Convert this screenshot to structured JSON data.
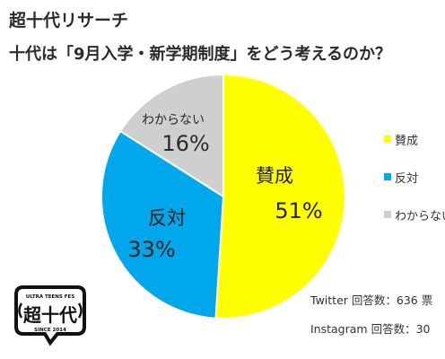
{
  "header": {
    "brand": "超十代リサーチ",
    "question": "十代は「9月入学・新学期制度」をどう考えるのか？"
  },
  "chart_data": {
    "type": "pie",
    "slices": [
      {
        "label": "賛成",
        "value": 51,
        "percent_label": "51%",
        "color": "#ffff00",
        "text_color": "#222222"
      },
      {
        "label": "反対",
        "value": 33,
        "percent_label": "33%",
        "color": "#00a7ea",
        "text_color": "#222222"
      },
      {
        "label": "わからない",
        "value": 16,
        "percent_label": "16%",
        "color": "#cfcfcf",
        "text_color": "#2b2b2b"
      }
    ],
    "legend_labels": [
      "賛成",
      "反対",
      "わからない"
    ],
    "legend_position": "right"
  },
  "footer": {
    "twitter": "Twitter 回答数：636 票",
    "instagram": "Instagram 回答数：30"
  },
  "logo": {
    "top_text": "ULTRA TEENS FES",
    "main_text": "超十代",
    "bottom_text": "SINCE 2014"
  }
}
